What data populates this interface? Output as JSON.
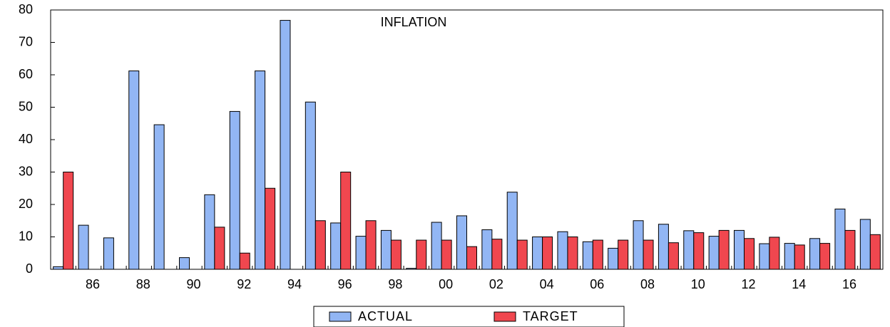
{
  "chart_data": {
    "type": "bar",
    "title": "INFLATION",
    "categories": [
      null,
      "86",
      null,
      "88",
      null,
      "90",
      null,
      "92",
      null,
      "94",
      null,
      "96",
      null,
      "98",
      null,
      "00",
      null,
      "02",
      null,
      "04",
      null,
      "06",
      null,
      "08",
      null,
      "10",
      null,
      "12",
      null,
      "14",
      null,
      "16",
      null
    ],
    "series": [
      {
        "name": "ACTUAL",
        "color": "#92b6f4",
        "values": [
          0.8,
          13.6,
          9.7,
          61.2,
          44.6,
          3.6,
          23,
          48.7,
          61.2,
          76.8,
          51.6,
          14.3,
          10.2,
          12,
          0.3,
          14.5,
          16.5,
          12.2,
          23.8,
          10,
          11.6,
          8.5,
          6.5,
          15,
          13.9,
          11.9,
          10.2,
          12,
          7.9,
          8,
          9.5,
          18.6,
          15.4
        ]
      },
      {
        "name": "TARGET",
        "color": "#f0474f",
        "values": [
          30,
          null,
          null,
          null,
          null,
          null,
          13,
          5,
          25,
          null,
          15,
          30,
          15,
          9,
          9,
          9,
          7,
          9.3,
          9,
          10,
          10,
          9,
          9,
          9,
          8.2,
          11.3,
          12,
          9.5,
          9.9,
          7.5,
          8,
          12,
          10.7
        ]
      }
    ],
    "ylim": [
      0,
      80
    ],
    "yticks": [
      0,
      10,
      20,
      30,
      40,
      50,
      60,
      70,
      80
    ]
  }
}
